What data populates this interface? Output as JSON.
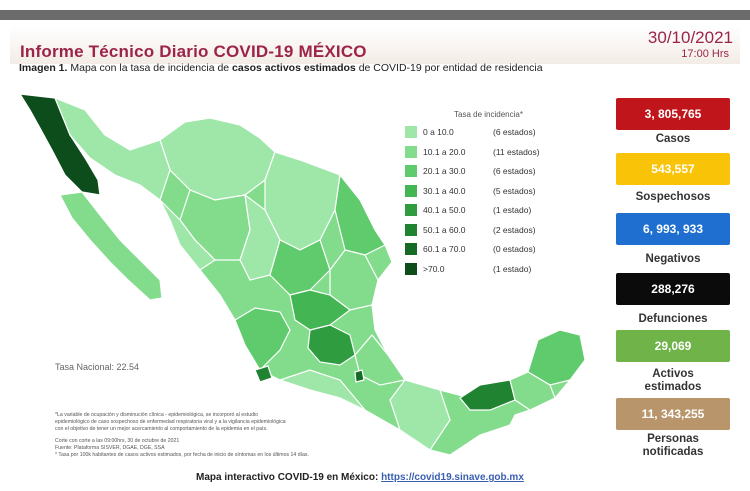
{
  "header": {
    "title": "Informe Técnico Diario COVID-19 MÉXICO",
    "date": "30/10/2021",
    "time": "17:00 Hrs",
    "caption_bold_prefix": "Imagen 1.",
    "caption_text_1": " Mapa con la tasa de incidencia de ",
    "caption_bold_mid": "casos activos estimados",
    "caption_text_2": " de COVID-19 por entidad de residencia"
  },
  "legend": {
    "title": "Tasa de incidencia*",
    "rows": [
      {
        "range": "0  a  10.0",
        "count": "(6 estados)",
        "color": "#9ee7a8"
      },
      {
        "range": "10.1  a  20.0",
        "count": "(11 estados)",
        "color": "#82dc8c"
      },
      {
        "range": "20.1  a  30.0",
        "count": "(6 estados)",
        "color": "#5fcb6c"
      },
      {
        "range": "30.1  a  40.0",
        "count": "(5 estados)",
        "color": "#43b552"
      },
      {
        "range": "40.1  a  50.0",
        "count": "(1 estado)",
        "color": "#2f9c40"
      },
      {
        "range": "50.1  a  60.0",
        "count": "(2 estados)",
        "color": "#208332"
      },
      {
        "range": "60.1  a  70.0",
        "count": "(0 estados)",
        "color": "#156b26"
      },
      {
        "range": ">70.0",
        "count": "(1 estado)",
        "color": "#0c4d1b"
      }
    ]
  },
  "map": {
    "national_rate": "Tasa Nacional: 22.54",
    "footnotes": [
      "*La variable de ocupación y disminución clínica - epidemiológica, se incorporó al estudio",
      "epidemiológico de caso sospechoso de enfermedad respiratoria viral y a la vigilancia epidemiológica",
      "con el objetivo de tener un mejor acercamiento al comportamiento de la epidemia en el país.",
      "Corte con corte a las 09:00hrs, 30 de octubre de 2021",
      "Fuente: Plataforma SISVER, DGAE, DGE, SSA",
      "* Tasa por 100k habitantes de casos activos estimados, por fecha de inicio de síntomas en los últimos 14 días."
    ],
    "bottom_text": "Mapa interactivo COVID-19 en México:",
    "bottom_link": "https://covid19.sinave.gob.mx"
  },
  "stats": [
    {
      "value": "3, 805,765",
      "label": "Casos",
      "color": "#c0151b"
    },
    {
      "value": "543,557",
      "label": "Sospechosos",
      "color": "#f9c307"
    },
    {
      "value": "6, 993, 933",
      "label": "Negativos",
      "color": "#1f6fd0"
    },
    {
      "value": "288,276",
      "label": "Defunciones",
      "color": "#0b0b0b"
    },
    {
      "value": "29,069",
      "label": "Activos estimados",
      "color": "#6fb349"
    },
    {
      "value": "11, 343,255",
      "label": "Personas notificadas",
      "color": "#b8956a"
    }
  ]
}
